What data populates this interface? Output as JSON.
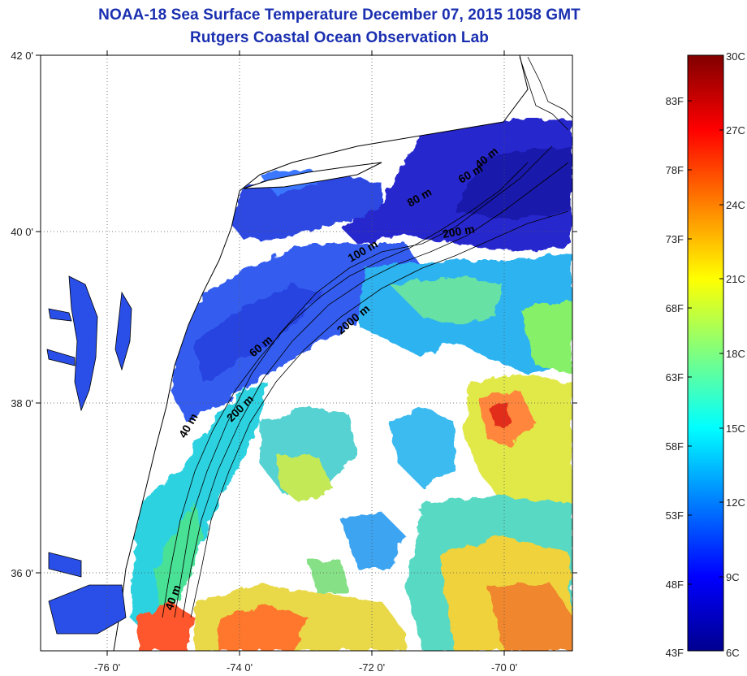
{
  "title": {
    "line1": "NOAA-18 Sea Surface Temperature December 07, 2015 1058 GMT",
    "line2": "Rutgers Coastal Ocean Observation Lab"
  },
  "map": {
    "lat_ticks": [
      "42 0'",
      "40 0'",
      "38 0'",
      "36 0'"
    ],
    "lon_ticks": [
      "-76 0'",
      "-74 0'",
      "-72 0'",
      "-70 0'"
    ],
    "isobath_labels": [
      "40 m",
      "60 m",
      "80 m",
      "200 m",
      "100 m",
      "2000 m",
      "60 m",
      "200 m",
      "40 m",
      "40 m"
    ]
  },
  "colorbar": {
    "fahrenheit_ticks": [
      "83F",
      "78F",
      "73F",
      "68F",
      "63F",
      "58F",
      "53F",
      "48F",
      "43F"
    ],
    "celsius_ticks": [
      "30C",
      "27C",
      "24C",
      "21C",
      "18C",
      "15C",
      "12C",
      "9C",
      "6C"
    ],
    "colors": [
      "#00008f",
      "#0000ff",
      "#00ffff",
      "#ffff00",
      "#ff0000",
      "#800000"
    ]
  }
}
